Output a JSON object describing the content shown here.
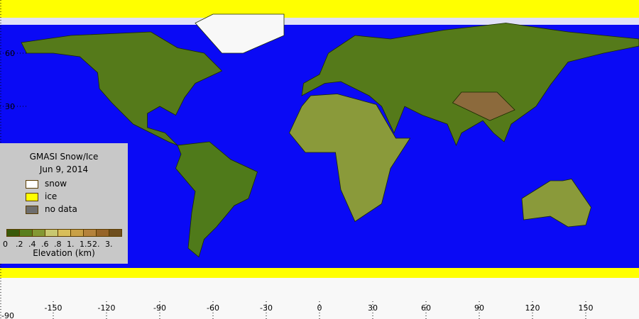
{
  "legend": {
    "title": "GMASI Snow/Ice",
    "date": "Jun  9, 2014",
    "items": [
      {
        "label": "snow",
        "color": "#ffffff"
      },
      {
        "label": "ice",
        "color": "#ffff00"
      },
      {
        "label": "no data",
        "color": "#6e6e6e"
      }
    ],
    "colorbar": {
      "colors": [
        "#3a5a0a",
        "#5a7f1e",
        "#849833",
        "#c8c870",
        "#d8be5a",
        "#c8a046",
        "#b4823c",
        "#966428",
        "#6e4e1e"
      ],
      "ticks": [
        "0",
        ".2",
        ".4",
        ".6",
        ".8",
        "1.",
        "1.5",
        "2.",
        "3."
      ],
      "label": "Elevation (km)"
    }
  },
  "axes": {
    "lon_ticks": [
      "-150",
      "-120",
      "-90",
      "-60",
      "-30",
      "0",
      "30",
      "60",
      "90",
      "120",
      "150"
    ],
    "lat_ticks": [
      "60",
      "30",
      "-90"
    ]
  },
  "colors": {
    "ocean": "#0a0af5",
    "land": "#557a1a",
    "snow": "#f8f8f8",
    "ice": "#ffff00"
  }
}
